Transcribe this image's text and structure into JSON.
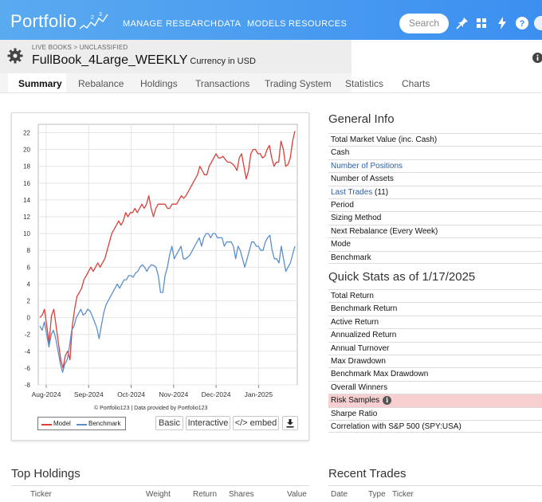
{
  "nav": {
    "logo": "Portfolio",
    "items": [
      "MANAGE",
      "RESEARCH",
      "DATA",
      "MODELS",
      "RESOURCES"
    ],
    "search_placeholder": "Search",
    "icons": [
      "pin-icon",
      "grid-icon",
      "bolt-icon",
      "help-icon"
    ]
  },
  "header": {
    "breadcrumb": "LIVE BOOKS > UNCLASSIFIED",
    "title": "FullBook_4Large_WEEKLY",
    "currency": "Currency in USD"
  },
  "tabs": [
    "Summary",
    "Rebalance",
    "Holdings",
    "Transactions",
    "Trading System",
    "Statistics",
    "Charts"
  ],
  "active_tab": "Summary",
  "chart_data": {
    "type": "line",
    "x_labels": [
      "Aug-2024",
      "Sep-2024",
      "Oct-2024",
      "Nov-2024",
      "Dec-2024",
      "Jan-2025"
    ],
    "y_ticks": [
      22,
      20,
      18,
      16,
      14,
      12,
      10,
      8,
      6,
      4,
      2,
      0,
      -2,
      -4,
      -6,
      -8
    ],
    "ylim": [
      -8,
      23
    ],
    "grid": true,
    "legend_position": "bottom-left",
    "series": [
      {
        "name": "Model",
        "color": "#d9403a",
        "values": [
          0,
          0.3,
          1,
          -1,
          -3,
          0.2,
          1,
          -1,
          -3,
          -5,
          -6,
          -4.5,
          -4,
          -5,
          -1,
          1,
          2.5,
          3,
          3.5,
          4.5,
          5,
          5.5,
          6,
          5.5,
          6,
          6.5,
          6,
          6.5,
          7,
          8,
          9,
          10,
          10.5,
          11,
          11.5,
          11,
          11.5,
          12.5,
          12,
          12.5,
          12.5,
          13,
          12.5,
          13,
          13.5,
          13,
          13.5,
          14.5,
          13,
          12,
          13,
          13.5,
          13.5,
          13.5,
          13.5,
          13,
          13,
          13.5,
          13.5,
          13.5,
          14,
          14.5,
          14.2,
          14.5,
          15,
          15.5,
          16,
          16.5,
          17,
          18,
          17.5,
          17,
          17,
          18,
          18.5,
          19,
          19.5,
          19,
          19,
          19.2,
          18.8,
          18.5,
          18.5,
          18.3,
          18,
          17.5,
          19,
          19.5,
          18,
          16.5,
          17.5,
          19.5,
          20,
          20,
          19.5,
          19.5,
          19,
          19.2,
          20,
          20.5,
          19,
          18,
          18.5,
          18.5,
          21,
          20,
          18,
          18.2,
          19,
          21,
          22.2
        ]
      },
      {
        "name": "Benchmark",
        "color": "#5b8fcc",
        "values": [
          -1,
          -1.5,
          -0.5,
          -2,
          -3.5,
          -2,
          -1.5,
          -2.5,
          -4,
          -5.5,
          -6.5,
          -5.5,
          -5,
          -3.5,
          -1.5,
          -1,
          0,
          0.5,
          1,
          0.3,
          0.5,
          1,
          0.8,
          0.2,
          -0.5,
          -1.2,
          -2.5,
          -1,
          0.5,
          1.5,
          2,
          2.5,
          3,
          3.5,
          4,
          3.5,
          4,
          4.5,
          4.5,
          5,
          5,
          4.8,
          5.3,
          5.5,
          6,
          6.3,
          6,
          5.5,
          6,
          6.3,
          6.2,
          6,
          5,
          3,
          3,
          5,
          6,
          7.5,
          8.5,
          7,
          7.5,
          8,
          8.5,
          7,
          7,
          7.2,
          7.5,
          8,
          8.5,
          9,
          9.5,
          8.5,
          9.5,
          10,
          10,
          9.5,
          10,
          10,
          9.5,
          9.5,
          9.5,
          8.5,
          9,
          9,
          9,
          8.5,
          7,
          8.5,
          8,
          7,
          6,
          7,
          8,
          9,
          9,
          8.5,
          8.5,
          8,
          8,
          9,
          9.5,
          9.8,
          8,
          7,
          7,
          6.5,
          8.5,
          7,
          5.5,
          6,
          6.5,
          7.5,
          8.5
        ]
      }
    ]
  },
  "chart_credit": "© Portfolio123 | Data provided by Portfolio123",
  "chart_buttons": {
    "basic": "Basic",
    "interactive": "Interactive",
    "embed": "</> embed"
  },
  "general_info": {
    "title": "General Info",
    "rows": [
      {
        "label": "Total Market Value (inc. Cash)",
        "suffix": "",
        "link": false
      },
      {
        "label": "Cash",
        "suffix": "",
        "link": false
      },
      {
        "label": "Number of Positions",
        "suffix": "",
        "link": true
      },
      {
        "label": "Number of Assets",
        "suffix": "",
        "link": false
      },
      {
        "label": "Last Trades",
        "suffix": " (11)",
        "link": true
      },
      {
        "label": "Period",
        "suffix": "",
        "link": false
      },
      {
        "label": "Sizing Method",
        "suffix": "",
        "link": false
      },
      {
        "label": "Next Rebalance (Every Week)",
        "suffix": "",
        "link": false
      },
      {
        "label": "Mode",
        "suffix": "",
        "link": false
      },
      {
        "label": "Benchmark",
        "suffix": "",
        "link": false
      }
    ]
  },
  "quick_stats": {
    "title": "Quick Stats as of 1/17/2025",
    "rows": [
      {
        "label": "Total Return",
        "highlight": false
      },
      {
        "label": "Benchmark Return",
        "highlight": false
      },
      {
        "label": "Active Return",
        "highlight": false
      },
      {
        "label": "Annualized Return",
        "highlight": false
      },
      {
        "label": "Annual Turnover",
        "highlight": false
      },
      {
        "label": "Max Drawdown",
        "highlight": false
      },
      {
        "label": "Benchmark Max Drawdown",
        "highlight": false
      },
      {
        "label": "Overall Winners",
        "highlight": false
      },
      {
        "label": "Risk Samples",
        "highlight": true
      },
      {
        "label": "Sharpe Ratio",
        "highlight": false
      },
      {
        "label": "Correlation with S&P 500 (SPY:USA)",
        "highlight": false
      }
    ]
  },
  "top_holdings": {
    "title": "Top Holdings",
    "columns": [
      "Ticker",
      "Weight",
      "Return",
      "Shares",
      "Value"
    ]
  },
  "recent_trades": {
    "title": "Recent Trades",
    "columns": [
      "Date",
      "Type",
      "Ticker"
    ]
  }
}
